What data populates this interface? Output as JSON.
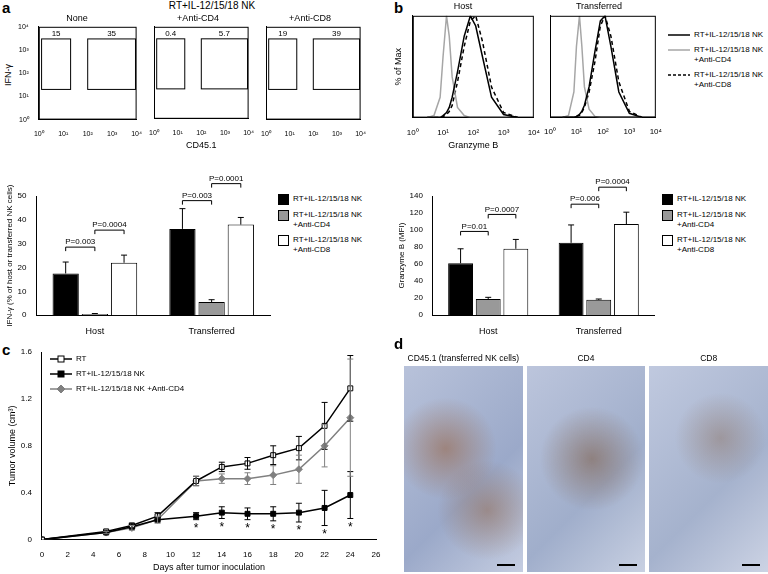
{
  "chart_data": [
    {
      "type": "flow",
      "panel_label": "a",
      "title": "RT+IL-12/15/18 NK",
      "xlabel": "CD45.1",
      "ylabel": "IFN-γ",
      "log": true,
      "grid": false,
      "xlim": [
        1,
        10000
      ],
      "ylim": [
        1,
        10000
      ],
      "xticks": [
        {
          "value": 1,
          "label": "10⁰"
        },
        {
          "value": 10,
          "label": "10¹"
        },
        {
          "value": 100,
          "label": "10²"
        },
        {
          "value": 1000,
          "label": "10³"
        },
        {
          "value": 10000,
          "label": "10⁴"
        }
      ],
      "yticks": [
        {
          "value": 1,
          "label": "10⁰"
        },
        {
          "value": 10,
          "label": "10¹"
        },
        {
          "value": 100,
          "label": "10²"
        },
        {
          "value": 1000,
          "label": "10³"
        },
        {
          "value": 10000,
          "label": "10⁴"
        }
      ],
      "plots": [
        {
          "title": "None",
          "gates": [
            {
              "x": [
                1.3,
                20
              ],
              "y": [
                20,
                3000
              ],
              "value": 15
            },
            {
              "x": [
                100,
                9000
              ],
              "y": [
                20,
                3000
              ],
              "value": 35
            }
          ]
        },
        {
          "title": "+Anti-CD4",
          "gates": [
            {
              "x": [
                1.3,
                20
              ],
              "y": [
                20,
                3000
              ],
              "value": 0.4
            },
            {
              "x": [
                100,
                9000
              ],
              "y": [
                20,
                3000
              ],
              "value": 5.7
            }
          ]
        },
        {
          "title": "+Anti-CD8",
          "gates": [
            {
              "x": [
                1.3,
                20
              ],
              "y": [
                20,
                3000
              ],
              "value": 19
            },
            {
              "x": [
                100,
                9000
              ],
              "y": [
                20,
                3000
              ],
              "value": 39
            }
          ]
        }
      ]
    },
    {
      "type": "bar",
      "ylabel": "IFN-γ (% of host or transferred NK cells)",
      "categories": [
        "Host",
        "Transferred"
      ],
      "grid": false,
      "ylim": [
        0,
        50
      ],
      "yticks": [
        0,
        10,
        20,
        30,
        40,
        50
      ],
      "legend": "right",
      "series": [
        {
          "name": "RT+IL-12/15/18 NK",
          "color": "#000000",
          "values": [
            17.5,
            36.2
          ],
          "errors": [
            4.8,
            8.5
          ]
        },
        {
          "name": "RT+IL-12/15/18 NK +Anti-CD4",
          "color": "#999999",
          "values": [
            0.5,
            5.5
          ],
          "errors": [
            0.2,
            1.0
          ]
        },
        {
          "name": "RT+IL-12/15/18 NK +Anti-CD8",
          "color": "#ffffff",
          "values": [
            22,
            38
          ],
          "errors": [
            3.2,
            3
          ]
        }
      ],
      "comparisons": [
        {
          "category": "Host",
          "between": [
            0,
            1
          ],
          "label": "P=0.003"
        },
        {
          "category": "Host",
          "between": [
            1,
            2
          ],
          "label": "P=0.0004"
        },
        {
          "category": "Transferred",
          "between": [
            0,
            1
          ],
          "label": "P=0.003"
        },
        {
          "category": "Transferred",
          "between": [
            1,
            2
          ],
          "label": "P=0.0001"
        }
      ]
    },
    {
      "type": "line",
      "panel_label": "b",
      "title": "Host",
      "xlabel": "Granzyme B",
      "ylabel": "% of Max",
      "log": "x",
      "grid": false,
      "tick_labels": "x",
      "xlim": [
        1,
        10000
      ],
      "ylim": [
        0,
        100
      ],
      "xticks": [
        {
          "value": 1,
          "label": "10⁰"
        },
        {
          "value": 10,
          "label": "10¹"
        },
        {
          "value": 100,
          "label": "10²"
        },
        {
          "value": 1000,
          "label": "10³"
        },
        {
          "value": 10000,
          "label": "10⁴"
        }
      ],
      "x": [
        3,
        5,
        8,
        10,
        13,
        16,
        20,
        30,
        50,
        80,
        120,
        200,
        400,
        1000,
        3000
      ],
      "series": [
        {
          "name": "RT+IL-12/15/18 NK",
          "color": "#000000",
          "line_style": "solid",
          "values": [
            0,
            0,
            0,
            2,
            5,
            10,
            20,
            45,
            80,
            100,
            90,
            60,
            20,
            3,
            0
          ]
        },
        {
          "name": "RT+IL-12/15/18 NK +Anti-CD4",
          "color": "#a6a6a6",
          "line_style": "solid",
          "values": [
            0,
            2,
            20,
            60,
            100,
            80,
            40,
            10,
            2,
            0,
            0,
            0,
            0,
            0,
            0
          ]
        },
        {
          "name": "RT+IL-12/15/18 NK +Anti-CD8",
          "color": "#000000",
          "line_style": "dashed",
          "values": [
            0,
            0,
            0,
            1,
            3,
            6,
            12,
            35,
            70,
            95,
            100,
            75,
            30,
            5,
            0
          ]
        }
      ]
    },
    {
      "type": "line",
      "title": "Transferred",
      "log": "x",
      "grid": false,
      "tick_labels": "x",
      "legend": "right",
      "xlim": [
        1,
        10000
      ],
      "ylim": [
        0,
        100
      ],
      "xticks": [
        {
          "value": 1,
          "label": "10⁰"
        },
        {
          "value": 10,
          "label": "10¹"
        },
        {
          "value": 100,
          "label": "10²"
        },
        {
          "value": 1000,
          "label": "10³"
        },
        {
          "value": 10000,
          "label": "10⁴"
        }
      ],
      "x": [
        3,
        5,
        8,
        10,
        13,
        16,
        20,
        30,
        50,
        80,
        120,
        200,
        400,
        1000,
        3000
      ],
      "series": [
        {
          "name": "RT+IL-12/15/18 NK",
          "color": "#000000",
          "line_style": "solid",
          "values": [
            0,
            0,
            0,
            1,
            3,
            6,
            12,
            30,
            65,
            95,
            100,
            70,
            25,
            4,
            0
          ]
        },
        {
          "name": "RT+IL-12/15/18 NK +Anti-CD4",
          "color": "#a6a6a6",
          "line_style": "solid",
          "values": [
            0,
            2,
            25,
            70,
            100,
            70,
            30,
            8,
            1,
            0,
            0,
            0,
            0,
            0,
            0
          ]
        },
        {
          "name": "RT+IL-12/15/18 NK +Anti-CD8",
          "color": "#000000",
          "line_style": "dashed",
          "values": [
            0,
            0,
            0,
            1,
            2,
            5,
            10,
            25,
            55,
            90,
            100,
            80,
            35,
            6,
            0
          ]
        }
      ]
    },
    {
      "type": "bar",
      "ylabel": "Granzyme B (MFI)",
      "categories": [
        "Host",
        "Transferred"
      ],
      "grid": false,
      "ylim": [
        0,
        140
      ],
      "yticks": [
        0,
        20,
        40,
        60,
        80,
        100,
        120,
        140
      ],
      "legend": "right",
      "series": [
        {
          "name": "RT+IL-12/15/18 NK",
          "color": "#000000",
          "values": [
            61,
            85
          ],
          "errors": [
            17,
            21
          ]
        },
        {
          "name": "RT+IL-12/15/18 NK +Anti-CD4",
          "color": "#999999",
          "values": [
            19,
            18
          ],
          "errors": [
            2,
            1
          ]
        },
        {
          "name": "RT+IL-12/15/18 NK +Anti-CD8",
          "color": "#ffffff",
          "values": [
            78,
            107
          ],
          "errors": [
            11,
            14
          ]
        }
      ],
      "comparisons": [
        {
          "category": "Host",
          "between": [
            0,
            1
          ],
          "label": "P=0.01"
        },
        {
          "category": "Host",
          "between": [
            1,
            2
          ],
          "label": "P=0.0007"
        },
        {
          "category": "Transferred",
          "between": [
            0,
            1
          ],
          "label": "P=0.006"
        },
        {
          "category": "Transferred",
          "between": [
            1,
            2
          ],
          "label": "P=0.0004"
        }
      ]
    },
    {
      "type": "line",
      "panel_label": "c",
      "xlabel": "Days after tumor inoculation",
      "ylabel": "Tumor volume (cm³)",
      "grid": false,
      "legend": "top-left",
      "xlim": [
        0,
        26
      ],
      "xticks": [
        0,
        2,
        4,
        6,
        8,
        10,
        12,
        14,
        16,
        18,
        20,
        22,
        24,
        26
      ],
      "ylim": [
        0,
        1.6
      ],
      "yticks": [
        0,
        0.4,
        0.8,
        1.2,
        1.6
      ],
      "x": [
        0,
        5,
        7,
        9,
        12,
        14,
        16,
        18,
        20,
        22,
        24
      ],
      "series": [
        {
          "name": "RT",
          "color": "#000000",
          "marker": "square-open",
          "line_style": "solid",
          "values": [
            0,
            0.07,
            0.12,
            0.2,
            0.5,
            0.62,
            0.65,
            0.72,
            0.78,
            0.97,
            1.29
          ],
          "errors": [
            null,
            0.01,
            0.02,
            0.03,
            0.04,
            0.04,
            0.05,
            0.08,
            0.1,
            0.2,
            0.28
          ]
        },
        {
          "name": "RT+IL-12/15/18 NK",
          "color": "#000000",
          "marker": "square",
          "line_style": "solid",
          "values": [
            0,
            0.06,
            0.11,
            0.17,
            0.2,
            0.23,
            0.22,
            0.22,
            0.23,
            0.27,
            0.38
          ],
          "errors": [
            null,
            0.01,
            0.02,
            0.02,
            0.03,
            0.05,
            0.05,
            0.06,
            0.08,
            0.15,
            0.2
          ]
        },
        {
          "name": "RT+IL-12/15/18 NK +Anti-CD4",
          "color": "#808080",
          "marker": "diamond",
          "line_style": "solid",
          "values": [
            0,
            0.06,
            0.1,
            0.17,
            0.5,
            0.52,
            0.52,
            0.55,
            0.6,
            0.8,
            1.04
          ],
          "errors": [
            null,
            0.01,
            0.02,
            0.03,
            0.04,
            0.04,
            0.05,
            0.08,
            0.12,
            0.18,
            0.5
          ]
        }
      ],
      "annotations": [
        {
          "x": 12,
          "text": "*"
        },
        {
          "x": 14,
          "text": "*"
        },
        {
          "x": 16,
          "text": "*"
        },
        {
          "x": 18,
          "text": "*"
        },
        {
          "x": 20,
          "text": "*"
        },
        {
          "x": 22,
          "text": "*"
        },
        {
          "x": 24,
          "text": "*"
        }
      ]
    },
    {
      "type": "images",
      "panel_label": "d",
      "titles": [
        "CD45.1 (transferred NK cells)",
        "CD4",
        "CD8"
      ]
    }
  ]
}
